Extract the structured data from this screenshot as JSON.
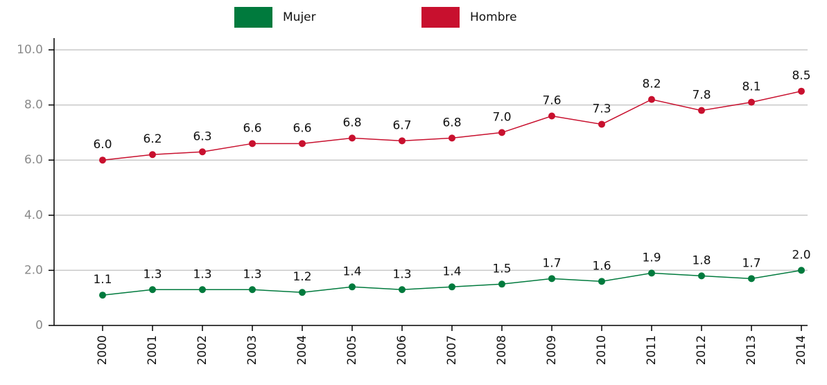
{
  "chart_data": {
    "type": "line",
    "categories": [
      "2000",
      "2001",
      "2002",
      "2003",
      "2004",
      "2005",
      "2006",
      "2007",
      "2008",
      "2009",
      "2010",
      "2011",
      "2012",
      "2013",
      "2014"
    ],
    "series": [
      {
        "name": "Mujer",
        "color": "#007a3d",
        "values": [
          1.1,
          1.3,
          1.3,
          1.3,
          1.2,
          1.4,
          1.3,
          1.4,
          1.5,
          1.7,
          1.6,
          1.9,
          1.8,
          1.7,
          2.0
        ],
        "value_labels": [
          "1.1",
          "1.3",
          "1.3",
          "1.3",
          "1.2",
          "1.4",
          "1.3",
          "1.4",
          "1.5",
          "1.7",
          "1.6",
          "1.9",
          "1.8",
          "1.7",
          "2.0"
        ]
      },
      {
        "name": "Hombre",
        "color": "#c8102e",
        "values": [
          6.0,
          6.2,
          6.3,
          6.6,
          6.6,
          6.8,
          6.7,
          6.8,
          7.0,
          7.6,
          7.3,
          8.2,
          7.8,
          8.1,
          8.5
        ],
        "value_labels": [
          "6.0",
          "6.2",
          "6.3",
          "6.6",
          "6.6",
          "6.8",
          "6.7",
          "6.8",
          "7.0",
          "7.6",
          "7.3",
          "8.2",
          "7.8",
          "8.1",
          "8.5"
        ]
      }
    ],
    "ylim": [
      0,
      10
    ],
    "yticks": [
      0,
      {
        "value": 2,
        "label": "2.0"
      },
      {
        "value": 4,
        "label": "4.0"
      },
      {
        "value": 6,
        "label": "6.0"
      },
      {
        "value": 8,
        "label": "8.0"
      },
      {
        "value": 10,
        "label": "10.0"
      }
    ],
    "grid": true,
    "legend": "top"
  }
}
